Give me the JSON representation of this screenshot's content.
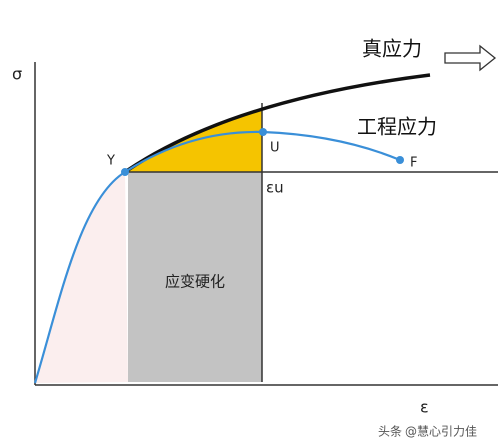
{
  "axes": {
    "y_label": "σ",
    "x_label": "ε"
  },
  "curves": {
    "true_stress": "真应力",
    "engineering_stress": "工程应力"
  },
  "points": {
    "yield": "Y",
    "ultimate": "U",
    "fracture": "F",
    "uniform_strain": "εu"
  },
  "region": {
    "label": "应变硬化"
  },
  "watermark": {
    "source": "头条",
    "author": "@慧心引力佳"
  }
}
